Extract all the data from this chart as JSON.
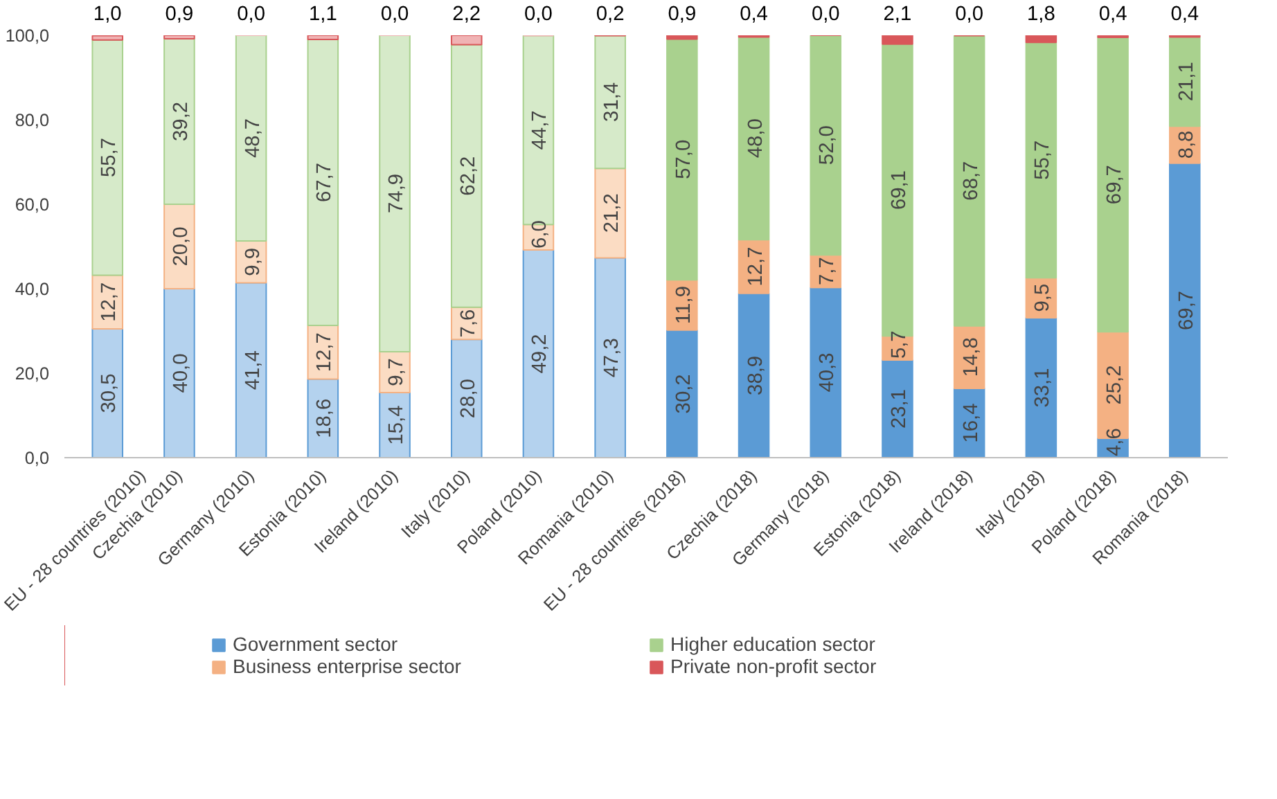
{
  "chart_data": {
    "type": "bar",
    "stacked": true,
    "categories": [
      "EU - 28 countries (2010)",
      "Czechia (2010)",
      "Germany (2010)",
      "Estonia (2010)",
      "Ireland (2010)",
      "Italy (2010)",
      "Poland (2010)",
      "Romania (2010)",
      "EU - 28 countries (2018)",
      "Czechia (2018)",
      "Germany (2018)",
      "Estonia (2018)",
      "Ireland (2018)",
      "Italy (2018)",
      "Poland (2018)",
      "Romania (2018)"
    ],
    "ylim": [
      0,
      100
    ],
    "yticks": [
      {
        "value": 0,
        "label": "0,0"
      },
      {
        "value": 20,
        "label": "20,0"
      },
      {
        "value": 40,
        "label": "40,0"
      },
      {
        "value": 60,
        "label": "60,0"
      },
      {
        "value": 80,
        "label": "80,0"
      },
      {
        "value": 100,
        "label": "100,0"
      }
    ],
    "grid": false,
    "legend": "bottom",
    "series": [
      {
        "name": "Government sector",
        "color": "#5b9bd5",
        "colors": [
          "#b4d2ee",
          "#b4d2ee",
          "#b4d2ee",
          "#b4d2ee",
          "#b4d2ee",
          "#b4d2ee",
          "#b4d2ee",
          "#b4d2ee",
          "#5b9bd5",
          "#5b9bd5",
          "#5b9bd5",
          "#5b9bd5",
          "#5b9bd5",
          "#5b9bd5",
          "#5b9bd5",
          "#5b9bd5"
        ],
        "values": [
          30.5,
          40.0,
          41.4,
          18.6,
          15.4,
          28.0,
          49.2,
          47.3,
          30.2,
          38.9,
          40.3,
          23.1,
          16.4,
          33.1,
          4.6,
          69.7
        ],
        "value_labels": [
          "30,5",
          "40,0",
          "41,4",
          "18,6",
          "15,4",
          "28,0",
          "49,2",
          "47,3",
          "30,2",
          "38,9",
          "40,3",
          "23,1",
          "16,4",
          "33,1",
          "4,6",
          "69,7"
        ]
      },
      {
        "name": "Business enterprise sector",
        "color": "#f4b183",
        "colors": [
          "#fbdcc3",
          "#fbdcc3",
          "#fbdcc3",
          "#fbdcc3",
          "#fbdcc3",
          "#fbdcc3",
          "#fbdcc3",
          "#fbdcc3",
          "#f4b183",
          "#f4b183",
          "#f4b183",
          "#f4b183",
          "#f4b183",
          "#f4b183",
          "#f4b183",
          "#f4b183"
        ],
        "values": [
          12.7,
          20.0,
          9.9,
          12.7,
          9.7,
          7.6,
          6.0,
          21.2,
          11.9,
          12.7,
          7.7,
          5.7,
          14.8,
          9.5,
          25.2,
          8.8
        ],
        "value_labels": [
          "12,7",
          "20,0",
          "9,9",
          "12,7",
          "9,7",
          "7,6",
          "6,0",
          "21,2",
          "11,9",
          "12,7",
          "7,7",
          "5,7",
          "14,8",
          "9,5",
          "25,2",
          "8,8"
        ]
      },
      {
        "name": "Higher education sector",
        "color": "#a9d18e",
        "colors": [
          "#d6eac9",
          "#d6eac9",
          "#d6eac9",
          "#d6eac9",
          "#d6eac9",
          "#d6eac9",
          "#d6eac9",
          "#d6eac9",
          "#a9d18e",
          "#a9d18e",
          "#a9d18e",
          "#a9d18e",
          "#a9d18e",
          "#a9d18e",
          "#a9d18e",
          "#a9d18e"
        ],
        "values": [
          55.7,
          39.2,
          48.7,
          67.7,
          74.9,
          62.2,
          44.7,
          31.4,
          57.0,
          48.0,
          52.0,
          69.1,
          68.7,
          55.7,
          69.7,
          21.1
        ],
        "value_labels": [
          "55,7",
          "39,2",
          "48,7",
          "67,7",
          "74,9",
          "62,2",
          "44,7",
          "31,4",
          "57,0",
          "48,0",
          "52,0",
          "69,1",
          "68,7",
          "55,7",
          "69,7",
          "21,1"
        ]
      },
      {
        "name": "Private non-profit sector",
        "color": "#d9575a",
        "colors": [
          "#f0b3b4",
          "#f0b3b4",
          "#f0b3b4",
          "#f0b3b4",
          "#f0b3b4",
          "#f0b3b4",
          "#f0b3b4",
          "#f0b3b4",
          "#d9575a",
          "#d9575a",
          "#d9575a",
          "#d9575a",
          "#d9575a",
          "#d9575a",
          "#d9575a",
          "#d9575a"
        ],
        "values": [
          1.0,
          0.9,
          0.0,
          1.1,
          0.0,
          2.2,
          0.0,
          0.2,
          0.9,
          0.4,
          0.0,
          2.1,
          0.0,
          1.8,
          0.4,
          0.4
        ],
        "value_labels": [
          "1,0",
          "0,9",
          "0,0",
          "1,1",
          "0,0",
          "2,2",
          "0,0",
          "0,2",
          "0,9",
          "0,4",
          "0,0",
          "2,1",
          "0,0",
          "1,8",
          "0,4",
          "0,4"
        ]
      }
    ]
  }
}
